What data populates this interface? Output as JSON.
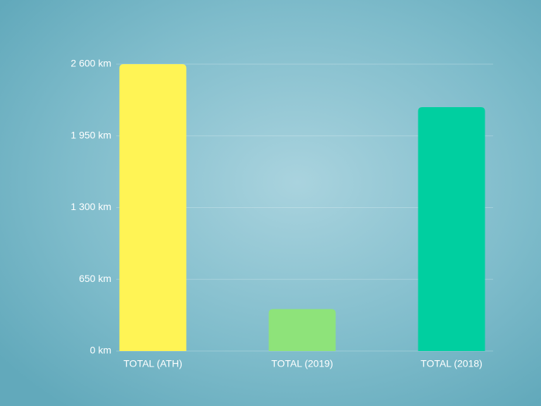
{
  "chart_data": {
    "type": "bar",
    "categories": [
      "TOTAL (ATH)",
      "TOTAL (2019)",
      "TOTAL (2018)"
    ],
    "values": [
      2600,
      380,
      2210
    ],
    "colors": [
      "#fff455",
      "#8ee37a",
      "#00cfa0"
    ],
    "ylim": [
      0,
      2600
    ],
    "yticks": [
      {
        "value": 0,
        "label": "0 km"
      },
      {
        "value": 650,
        "label": "650 km"
      },
      {
        "value": 1300,
        "label": "1 300 km"
      },
      {
        "value": 1950,
        "label": "1 950 km"
      },
      {
        "value": 2600,
        "label": "2 600 km"
      }
    ],
    "grid": true
  }
}
